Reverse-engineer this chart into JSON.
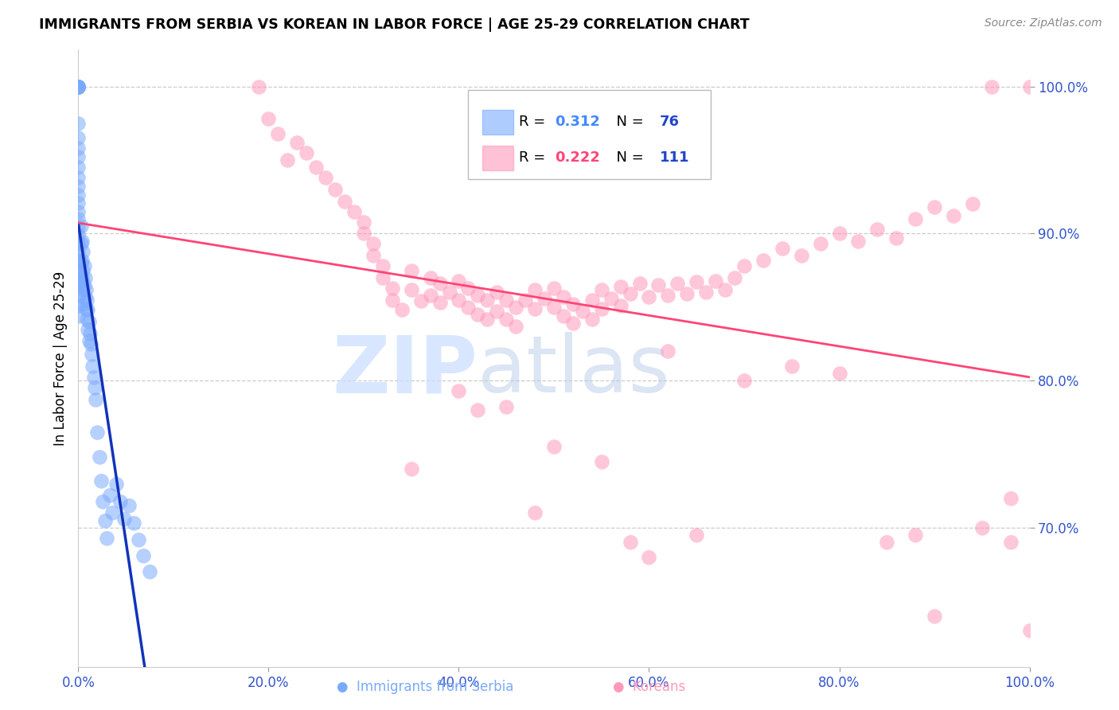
{
  "title": "IMMIGRANTS FROM SERBIA VS KOREAN IN LABOR FORCE | AGE 25-29 CORRELATION CHART",
  "source": "Source: ZipAtlas.com",
  "ylabel": "In Labor Force | Age 25-29",
  "x_tick_labels": [
    "0.0%",
    "20.0%",
    "40.0%",
    "60.0%",
    "80.0%",
    "100.0%"
  ],
  "x_tick_vals": [
    0.0,
    0.2,
    0.4,
    0.6,
    0.8,
    1.0
  ],
  "y_tick_labels": [
    "70.0%",
    "80.0%",
    "90.0%",
    "100.0%"
  ],
  "y_tick_vals": [
    0.7,
    0.8,
    0.9,
    1.0
  ],
  "xlim": [
    0.0,
    1.0
  ],
  "ylim": [
    0.605,
    1.025
  ],
  "serbia_R": "0.312",
  "serbia_N": "76",
  "korean_R": "0.222",
  "korean_N": "111",
  "serbia_color": "#7aaaff",
  "serbian_line_color": "#1133bb",
  "korean_color": "#ff99bb",
  "korean_line_color": "#ff4477",
  "legend_R_color_serbia": "#4488ff",
  "legend_R_color_korean": "#ff4477",
  "legend_N_color": "#2244cc",
  "watermark_zip": "ZIP",
  "watermark_atlas": "atlas",
  "serbia_x": [
    0.0,
    0.0,
    0.0,
    0.0,
    0.0,
    0.0,
    0.0,
    0.0,
    0.0,
    0.0,
    0.0,
    0.0,
    0.0,
    0.0,
    0.0,
    0.0,
    0.0,
    0.0,
    0.0,
    0.0,
    0.0,
    0.0,
    0.0,
    0.0,
    0.0,
    0.0,
    0.0,
    0.0,
    0.0,
    0.0,
    0.003,
    0.003,
    0.003,
    0.003,
    0.004,
    0.004,
    0.004,
    0.005,
    0.005,
    0.005,
    0.006,
    0.006,
    0.006,
    0.007,
    0.007,
    0.008,
    0.008,
    0.009,
    0.009,
    0.01,
    0.01,
    0.011,
    0.011,
    0.012,
    0.013,
    0.014,
    0.015,
    0.016,
    0.017,
    0.018,
    0.02,
    0.022,
    0.024,
    0.026,
    0.028,
    0.03,
    0.033,
    0.036,
    0.04,
    0.044,
    0.048,
    0.053,
    0.058,
    0.063,
    0.068,
    0.075
  ],
  "serbia_y": [
    1.0,
    1.0,
    1.0,
    1.0,
    1.0,
    1.0,
    1.0,
    1.0,
    0.975,
    0.965,
    0.958,
    0.952,
    0.945,
    0.938,
    0.932,
    0.926,
    0.921,
    0.915,
    0.91,
    0.904,
    0.899,
    0.893,
    0.887,
    0.882,
    0.876,
    0.87,
    0.864,
    0.858,
    0.851,
    0.844,
    0.905,
    0.893,
    0.88,
    0.868,
    0.895,
    0.882,
    0.87,
    0.888,
    0.875,
    0.862,
    0.878,
    0.865,
    0.852,
    0.87,
    0.857,
    0.862,
    0.849,
    0.855,
    0.842,
    0.848,
    0.835,
    0.84,
    0.827,
    0.832,
    0.825,
    0.818,
    0.81,
    0.802,
    0.795,
    0.787,
    0.765,
    0.748,
    0.732,
    0.718,
    0.705,
    0.693,
    0.722,
    0.71,
    0.73,
    0.718,
    0.706,
    0.715,
    0.703,
    0.692,
    0.681,
    0.67
  ],
  "korean_x": [
    0.0,
    0.0,
    0.0,
    0.19,
    0.2,
    0.21,
    0.22,
    0.23,
    0.24,
    0.25,
    0.26,
    0.27,
    0.28,
    0.29,
    0.3,
    0.3,
    0.31,
    0.31,
    0.32,
    0.32,
    0.33,
    0.33,
    0.34,
    0.35,
    0.35,
    0.36,
    0.37,
    0.37,
    0.38,
    0.38,
    0.39,
    0.4,
    0.4,
    0.41,
    0.41,
    0.42,
    0.42,
    0.43,
    0.43,
    0.44,
    0.44,
    0.45,
    0.45,
    0.46,
    0.46,
    0.47,
    0.48,
    0.48,
    0.49,
    0.5,
    0.5,
    0.51,
    0.51,
    0.52,
    0.52,
    0.53,
    0.54,
    0.54,
    0.55,
    0.55,
    0.56,
    0.57,
    0.57,
    0.58,
    0.59,
    0.6,
    0.61,
    0.62,
    0.63,
    0.64,
    0.65,
    0.66,
    0.67,
    0.68,
    0.69,
    0.7,
    0.72,
    0.74,
    0.76,
    0.78,
    0.8,
    0.82,
    0.84,
    0.86,
    0.88,
    0.9,
    0.92,
    0.94,
    0.96,
    0.98,
    1.0,
    0.4,
    0.45,
    0.5,
    0.55,
    0.6,
    0.35,
    0.42,
    0.48,
    0.58,
    0.62,
    0.65,
    0.7,
    0.75,
    0.8,
    0.85,
    0.88,
    0.9,
    0.95,
    0.98,
    1.0
  ],
  "korean_y": [
    0.88,
    0.873,
    0.865,
    1.0,
    0.978,
    0.968,
    0.95,
    0.962,
    0.955,
    0.945,
    0.938,
    0.93,
    0.922,
    0.915,
    0.908,
    0.9,
    0.893,
    0.885,
    0.878,
    0.87,
    0.863,
    0.855,
    0.848,
    0.875,
    0.862,
    0.854,
    0.87,
    0.858,
    0.866,
    0.853,
    0.86,
    0.868,
    0.855,
    0.863,
    0.85,
    0.858,
    0.845,
    0.855,
    0.842,
    0.86,
    0.847,
    0.855,
    0.842,
    0.85,
    0.837,
    0.855,
    0.862,
    0.849,
    0.856,
    0.863,
    0.85,
    0.857,
    0.844,
    0.852,
    0.839,
    0.847,
    0.855,
    0.842,
    0.862,
    0.849,
    0.856,
    0.864,
    0.851,
    0.859,
    0.866,
    0.857,
    0.865,
    0.858,
    0.866,
    0.859,
    0.867,
    0.86,
    0.868,
    0.862,
    0.87,
    0.878,
    0.882,
    0.89,
    0.885,
    0.893,
    0.9,
    0.895,
    0.903,
    0.897,
    0.91,
    0.918,
    0.912,
    0.92,
    1.0,
    0.72,
    1.0,
    0.793,
    0.782,
    0.755,
    0.745,
    0.68,
    0.74,
    0.78,
    0.71,
    0.69,
    0.82,
    0.695,
    0.8,
    0.81,
    0.805,
    0.69,
    0.695,
    0.64,
    0.7,
    0.69,
    0.63
  ]
}
